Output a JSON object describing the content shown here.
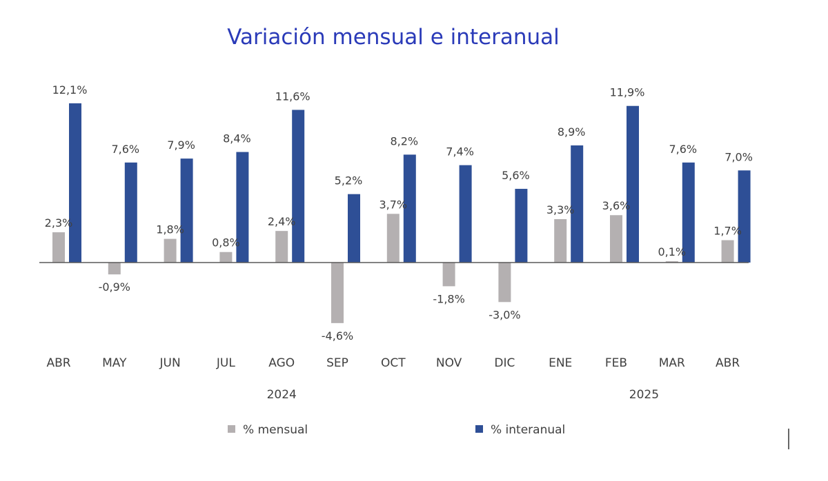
{
  "chart_data": {
    "type": "bar",
    "title": "Variación mensual e interanual",
    "categories": [
      "ABR",
      "MAY",
      "JUN",
      "JUL",
      "AGO",
      "SEP",
      "OCT",
      "NOV",
      "DIC",
      "ENE",
      "FEB",
      "MAR",
      "ABR"
    ],
    "year_groups": [
      {
        "label": "2024",
        "start": 0,
        "end": 8
      },
      {
        "label": "2025",
        "start": 9,
        "end": 12
      }
    ],
    "series": [
      {
        "name": "% mensual",
        "color": "#b4b0b1",
        "values": [
          2.3,
          -0.9,
          1.8,
          0.8,
          2.4,
          -4.6,
          3.7,
          -1.8,
          -3.0,
          3.3,
          3.6,
          0.1,
          1.7
        ],
        "labels": [
          "2,3%",
          "-0,9%",
          "1,8%",
          "0,8%",
          "2,4%",
          "-4,6%",
          "3,7%",
          "-1,8%",
          "-3,0%",
          "3,3%",
          "3,6%",
          "0,1%",
          "1,7%"
        ]
      },
      {
        "name": "% interanual",
        "color": "#2e4f96",
        "values": [
          12.1,
          7.6,
          7.9,
          8.4,
          11.6,
          5.2,
          8.2,
          7.4,
          5.6,
          8.9,
          11.9,
          7.6,
          7.0
        ],
        "labels": [
          "12,1%",
          "7,6%",
          "7,9%",
          "8,4%",
          "11,6%",
          "5,2%",
          "8,2%",
          "7,4%",
          "5,6%",
          "8,9%",
          "11,9%",
          "7,6%",
          "7,0%"
        ]
      }
    ],
    "axis_color": "#595959",
    "legend_position": "bottom",
    "grid": false
  }
}
